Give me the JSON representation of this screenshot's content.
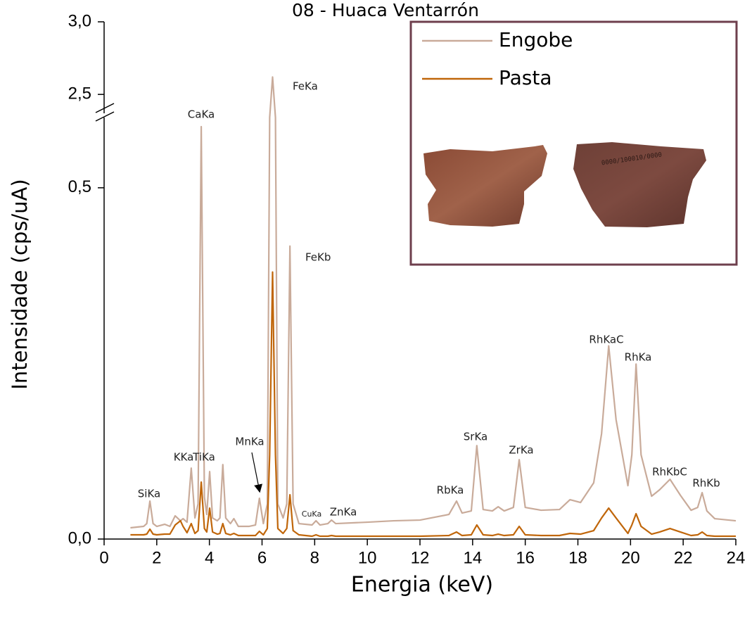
{
  "chart_data": {
    "type": "line",
    "title": "08 - Huaca Ventarrón",
    "x_label": "Energia (keV)",
    "y_label": "Intensidade (cps/uA)",
    "xlim": [
      0,
      24
    ],
    "xticks": [
      0,
      2,
      4,
      6,
      8,
      10,
      12,
      14,
      16,
      18,
      20,
      22,
      24
    ],
    "ylim": [
      0,
      3.0
    ],
    "ybreak": [
      0.6,
      2.37
    ],
    "yticks": [
      {
        "value": 0,
        "label": "0,0"
      },
      {
        "value": 0.5,
        "label": "0,5"
      },
      {
        "value": 2.5,
        "label": "2,5"
      },
      {
        "value": 3.0,
        "label": "3,0"
      }
    ],
    "x": [
      1.0,
      1.5,
      1.62,
      1.74,
      1.86,
      2.0,
      2.3,
      2.5,
      2.7,
      2.9,
      3.0,
      3.15,
      3.31,
      3.45,
      3.57,
      3.69,
      3.81,
      3.9,
      4.01,
      4.12,
      4.3,
      4.4,
      4.51,
      4.62,
      4.8,
      4.93,
      5.1,
      5.5,
      5.75,
      5.9,
      6.05,
      6.2,
      6.29,
      6.4,
      6.51,
      6.6,
      6.8,
      6.94,
      7.06,
      7.18,
      7.4,
      7.9,
      8.05,
      8.2,
      8.5,
      8.64,
      8.8,
      10,
      11,
      12,
      13.1,
      13.39,
      13.6,
      13.95,
      14.16,
      14.4,
      14.75,
      14.97,
      15.2,
      15.55,
      15.77,
      16.0,
      16.6,
      17.3,
      17.7,
      18.1,
      18.6,
      18.9,
      19.17,
      19.45,
      19.9,
      20.05,
      20.21,
      20.4,
      20.8,
      21.1,
      21.5,
      21.9,
      22.3,
      22.55,
      22.72,
      22.9,
      23.2,
      24
    ],
    "series": [
      {
        "name": "Engobe",
        "color": "#c9ab9a",
        "values": [
          0.016,
          0.018,
          0.022,
          0.054,
          0.022,
          0.018,
          0.021,
          0.018,
          0.033,
          0.026,
          0.029,
          0.024,
          0.101,
          0.03,
          0.05,
          0.587,
          0.06,
          0.035,
          0.096,
          0.03,
          0.026,
          0.03,
          0.106,
          0.03,
          0.022,
          0.029,
          0.018,
          0.018,
          0.02,
          0.058,
          0.022,
          0.05,
          0.6,
          2.62,
          0.6,
          0.05,
          0.03,
          0.05,
          0.417,
          0.05,
          0.022,
          0.02,
          0.026,
          0.02,
          0.022,
          0.027,
          0.022,
          0.024,
          0.026,
          0.027,
          0.035,
          0.054,
          0.037,
          0.04,
          0.133,
          0.042,
          0.04,
          0.046,
          0.04,
          0.045,
          0.113,
          0.045,
          0.041,
          0.042,
          0.056,
          0.052,
          0.08,
          0.15,
          0.275,
          0.17,
          0.076,
          0.12,
          0.249,
          0.12,
          0.061,
          0.07,
          0.085,
          0.062,
          0.041,
          0.045,
          0.066,
          0.04,
          0.029,
          0.026
        ]
      },
      {
        "name": "Pasta",
        "color": "#c0660a",
        "values": [
          0.006,
          0.006,
          0.007,
          0.014,
          0.007,
          0.006,
          0.007,
          0.007,
          0.02,
          0.026,
          0.018,
          0.009,
          0.022,
          0.008,
          0.012,
          0.081,
          0.015,
          0.01,
          0.044,
          0.01,
          0.007,
          0.008,
          0.022,
          0.008,
          0.006,
          0.008,
          0.005,
          0.005,
          0.005,
          0.011,
          0.006,
          0.015,
          0.12,
          0.38,
          0.12,
          0.015,
          0.008,
          0.015,
          0.063,
          0.012,
          0.006,
          0.004,
          0.006,
          0.004,
          0.004,
          0.005,
          0.004,
          0.004,
          0.004,
          0.004,
          0.005,
          0.01,
          0.005,
          0.006,
          0.02,
          0.006,
          0.005,
          0.007,
          0.005,
          0.006,
          0.018,
          0.006,
          0.005,
          0.005,
          0.008,
          0.007,
          0.012,
          0.03,
          0.044,
          0.03,
          0.008,
          0.02,
          0.036,
          0.018,
          0.007,
          0.01,
          0.015,
          0.01,
          0.005,
          0.006,
          0.01,
          0.005,
          0.004,
          0.004
        ]
      }
    ],
    "annotations": [
      "SiKa",
      "KKa",
      "CaKa",
      "TiKa",
      "MnKa",
      "FeKa",
      "FeKb",
      "CuKa",
      "ZnKa",
      "RbKa",
      "SrKa",
      "ZrKa",
      "RhKaC",
      "RhKa",
      "RhKbC",
      "RhKb"
    ]
  }
}
